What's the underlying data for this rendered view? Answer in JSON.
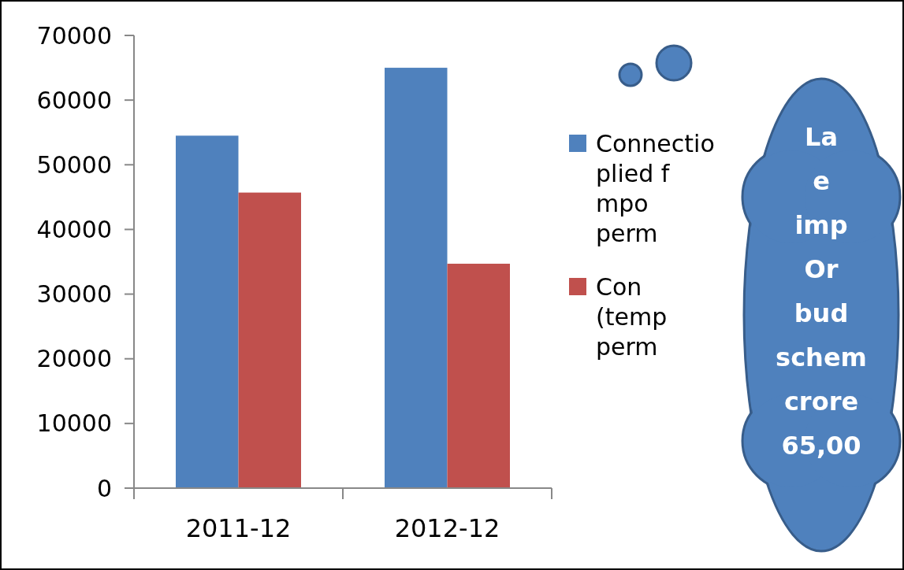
{
  "chart_data": {
    "type": "bar",
    "categories": [
      "2011-12",
      "2012-12"
    ],
    "series": [
      {
        "name": "Connectio\nplied f\nmpo\nperm",
        "color": "#4f81bd",
        "values": [
          54500,
          65000
        ]
      },
      {
        "name": "Con\n(temp\nperm",
        "color": "#c0504d",
        "values": [
          45700,
          34700
        ]
      }
    ],
    "ylim": [
      0,
      70000
    ],
    "yticks": [
      0,
      10000,
      20000,
      30000,
      40000,
      50000,
      60000,
      70000
    ],
    "grid": false,
    "legend": "right",
    "annotations": [
      "La",
      "e",
      "imp",
      "Or",
      "bud",
      "schem",
      "crore",
      "65,00"
    ]
  }
}
